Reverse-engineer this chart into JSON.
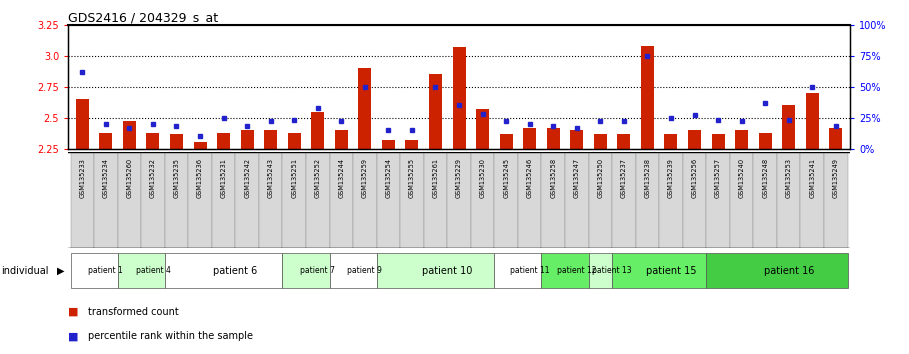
{
  "title": "GDS2416 / 204329_s_at",
  "samples": [
    "GSM135233",
    "GSM135234",
    "GSM135260",
    "GSM135232",
    "GSM135235",
    "GSM135236",
    "GSM135231",
    "GSM135242",
    "GSM135243",
    "GSM135251",
    "GSM135252",
    "GSM135244",
    "GSM135259",
    "GSM135254",
    "GSM135255",
    "GSM135261",
    "GSM135229",
    "GSM135230",
    "GSM135245",
    "GSM135246",
    "GSM135258",
    "GSM135247",
    "GSM135250",
    "GSM135237",
    "GSM135238",
    "GSM135239",
    "GSM135256",
    "GSM135257",
    "GSM135240",
    "GSM135248",
    "GSM135253",
    "GSM135241",
    "GSM135249"
  ],
  "bar_values": [
    2.65,
    2.38,
    2.47,
    2.38,
    2.37,
    2.3,
    2.38,
    2.4,
    2.4,
    2.38,
    2.55,
    2.4,
    2.9,
    2.32,
    2.32,
    2.85,
    3.07,
    2.57,
    2.37,
    2.42,
    2.42,
    2.4,
    2.37,
    2.37,
    3.08,
    2.37,
    2.4,
    2.37,
    2.4,
    2.38,
    2.6,
    2.7,
    2.42
  ],
  "dot_values": [
    62,
    20,
    17,
    20,
    18,
    10,
    25,
    18,
    22,
    23,
    33,
    22,
    50,
    15,
    15,
    50,
    35,
    28,
    22,
    20,
    18,
    17,
    22,
    22,
    75,
    25,
    27,
    23,
    22,
    37,
    23,
    50,
    18
  ],
  "patients": [
    {
      "label": "patient 1",
      "start": 0,
      "end": 2,
      "color": "#ffffff"
    },
    {
      "label": "patient 4",
      "start": 2,
      "end": 4,
      "color": "#ccffcc"
    },
    {
      "label": "patient 6",
      "start": 4,
      "end": 9,
      "color": "#ffffff"
    },
    {
      "label": "patient 7",
      "start": 9,
      "end": 11,
      "color": "#ccffcc"
    },
    {
      "label": "patient 9",
      "start": 11,
      "end": 13,
      "color": "#ffffff"
    },
    {
      "label": "patient 10",
      "start": 13,
      "end": 18,
      "color": "#ccffcc"
    },
    {
      "label": "patient 11",
      "start": 18,
      "end": 20,
      "color": "#ffffff"
    },
    {
      "label": "patient 12",
      "start": 20,
      "end": 22,
      "color": "#66ee66"
    },
    {
      "label": "patient 13",
      "start": 22,
      "end": 23,
      "color": "#ccffcc"
    },
    {
      "label": "patient 15",
      "start": 23,
      "end": 27,
      "color": "#66ee66"
    },
    {
      "label": "patient 16",
      "start": 27,
      "end": 33,
      "color": "#44cc44"
    }
  ],
  "ylim_left": [
    2.25,
    3.25
  ],
  "ylim_right": [
    0,
    100
  ],
  "yticks_left": [
    2.25,
    2.5,
    2.75,
    3.0,
    3.25
  ],
  "yticks_right": [
    0,
    25,
    50,
    75,
    100
  ],
  "ytick_labels_right": [
    "0%",
    "25%",
    "50%",
    "75%",
    "100%"
  ],
  "bar_color": "#cc2200",
  "dot_color": "#2222cc",
  "hline_values": [
    2.5,
    2.75,
    3.0
  ],
  "background_color": "#ffffff"
}
